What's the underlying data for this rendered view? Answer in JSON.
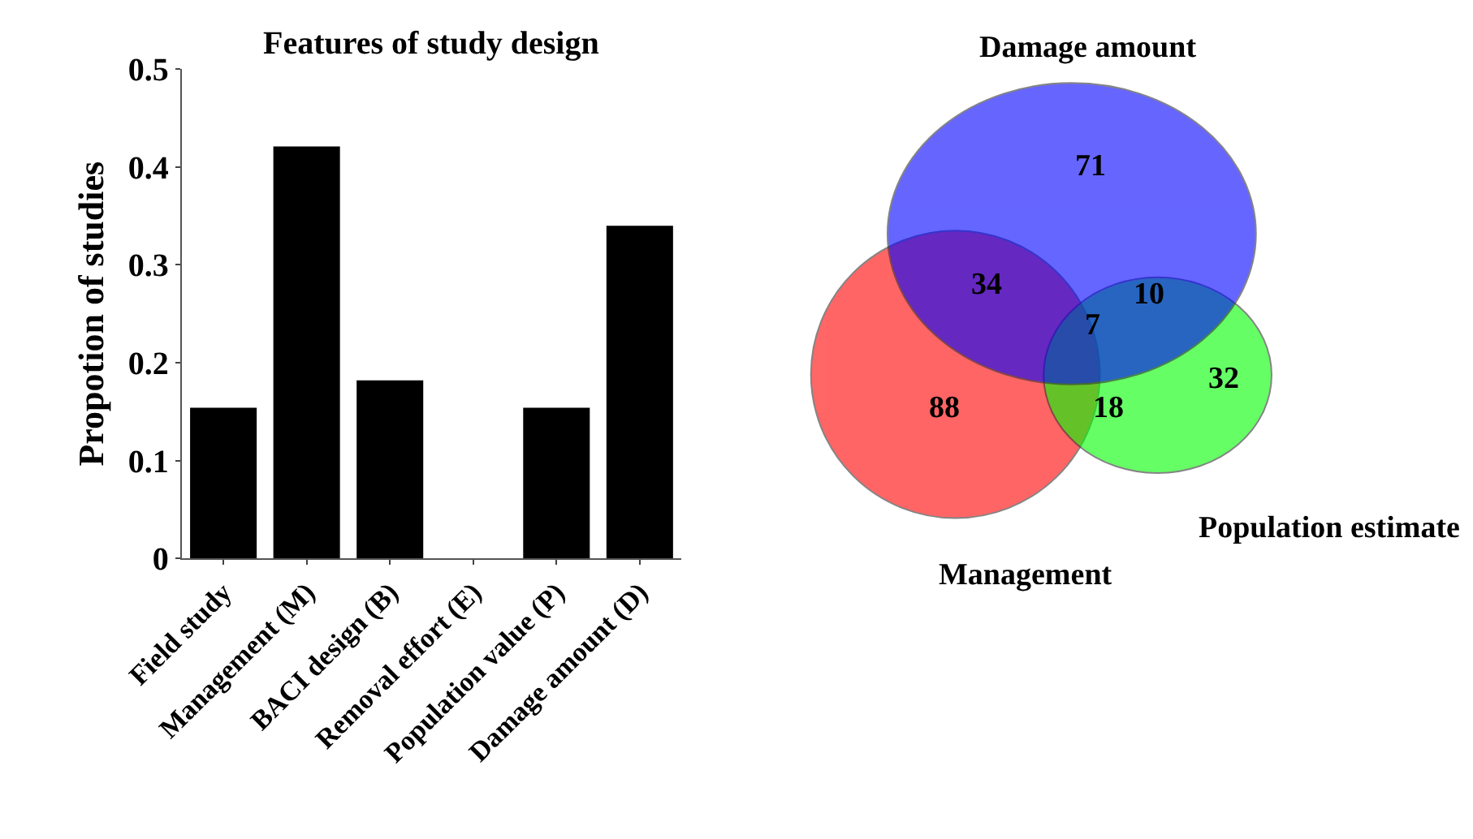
{
  "chart_data": [
    {
      "type": "bar",
      "title": "Features of study design",
      "ylabel": "Propotion of studies",
      "categories": [
        "Field study",
        "Management (M)",
        "BACI design (B)",
        "Removal effort (E)",
        "Population value (P)",
        "Damage amount (D)"
      ],
      "values": [
        0.154,
        0.421,
        0.182,
        0,
        0.154,
        0.34
      ],
      "color": "#000000",
      "ylim": [
        0,
        0.5
      ],
      "yticks": [
        0,
        0.1,
        0.2,
        0.3,
        0.4,
        0.5
      ]
    },
    {
      "type": "other",
      "categories": [
        "Damage amount",
        "Management",
        "Population estimate"
      ],
      "colors": [
        "#0000ff",
        "#ff0000",
        "#00ff00"
      ],
      "annotations": [
        "71",
        "34",
        "10",
        "7",
        "18",
        "32",
        "88"
      ]
    }
  ]
}
